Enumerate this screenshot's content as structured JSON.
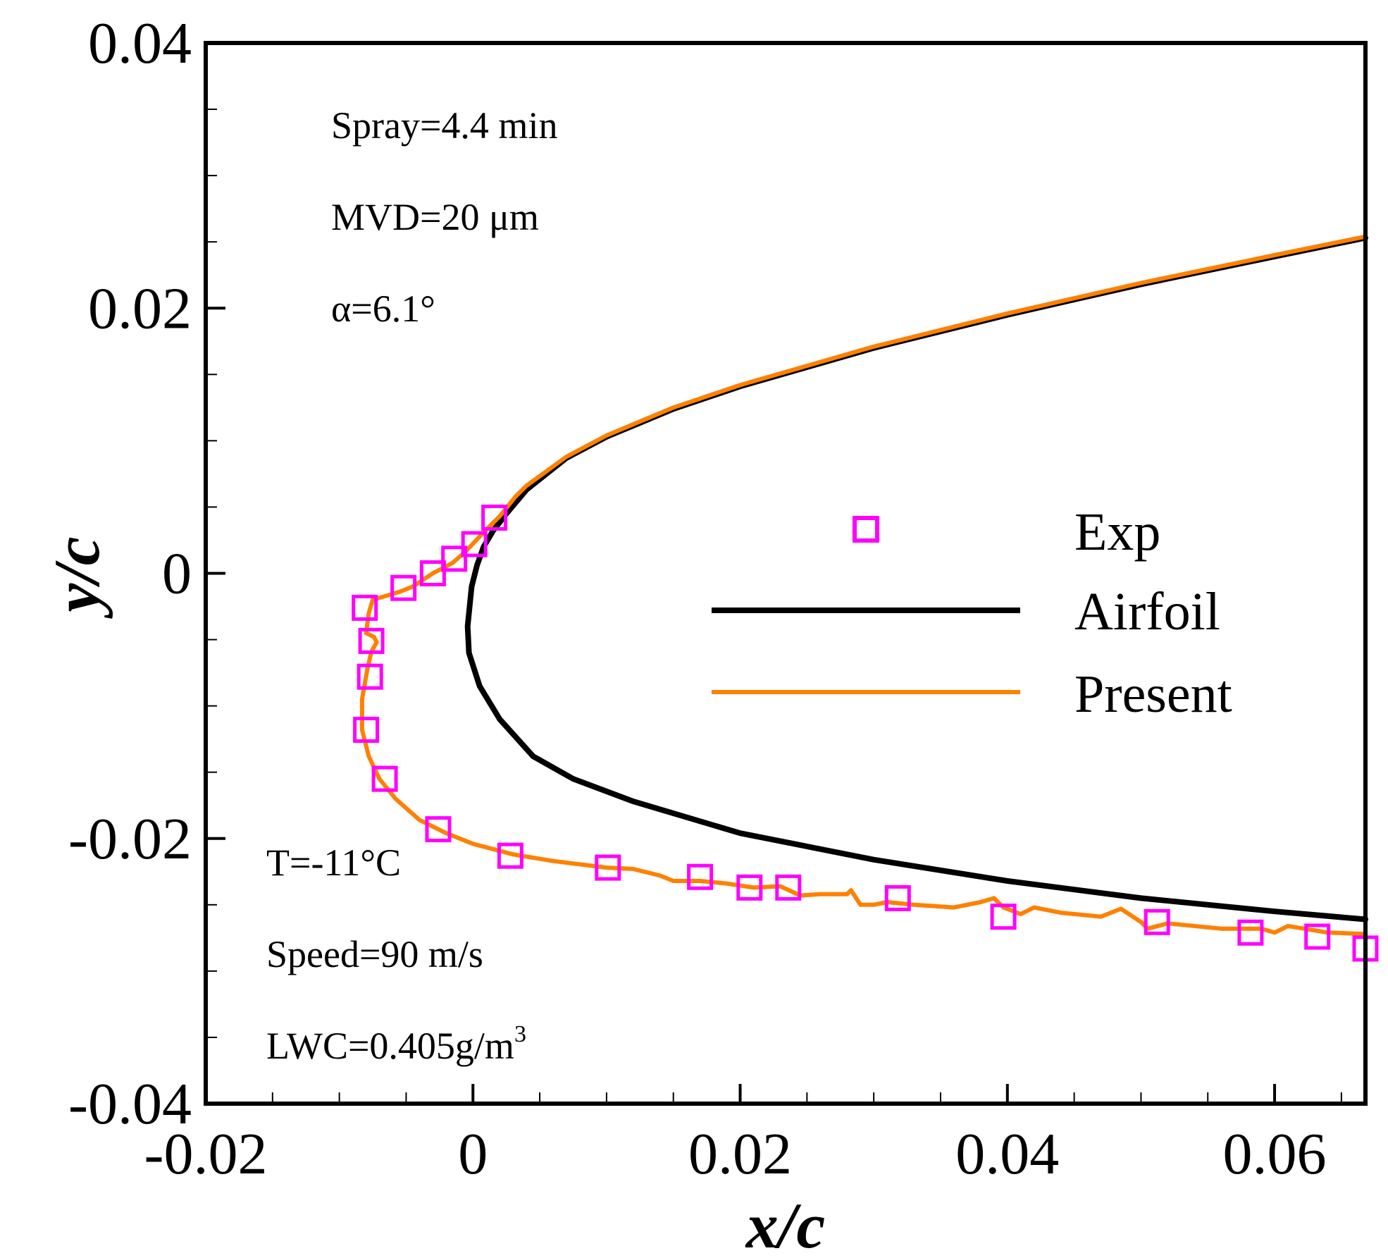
{
  "chart_data": {
    "type": "scatter",
    "xlabel": "x/c",
    "ylabel": "y/c",
    "xlim": [
      -0.02,
      0.0668
    ],
    "ylim": [
      -0.04,
      0.04
    ],
    "x_major_ticks": [
      -0.02,
      0,
      0.02,
      0.04,
      0.06
    ],
    "x_tick_labels": [
      "-0.02",
      "0",
      "0.02",
      "0.04",
      "0.06"
    ],
    "x_minor_ticks": [
      -0.015,
      -0.01,
      -0.005,
      0.005,
      0.01,
      0.015,
      0.025,
      0.03,
      0.035,
      0.045,
      0.05,
      0.055,
      0.065
    ],
    "y_major_ticks": [
      -0.04,
      -0.02,
      0,
      0.02,
      0.04
    ],
    "y_tick_labels": [
      "-0.04",
      "-0.02",
      "0",
      "0.02",
      "0.04"
    ],
    "y_minor_ticks": [
      -0.035,
      -0.03,
      -0.025,
      -0.015,
      -0.01,
      -0.005,
      0.005,
      0.01,
      0.015,
      0.025,
      0.03,
      0.035
    ],
    "grid": false,
    "legend_position": "center-right",
    "annotations_top": [
      "Spray=4.4 min",
      "MVD=20 μm",
      "α=6.1°"
    ],
    "annotations_bottom": {
      "temperature": "T=-11°C",
      "speed": "Speed=90 m/s",
      "lwc": "LWC=0.405g/m",
      "lwc_superscript": "3"
    },
    "series": [
      {
        "name": "Exp",
        "kind": "markers",
        "marker": "open-square",
        "color": "#ff00ff",
        "points": [
          [
            0.0016,
            0.0042
          ],
          [
            0.0001,
            0.0022
          ],
          [
            -0.0014,
            0.0011
          ],
          [
            -0.003,
            0.0
          ],
          [
            -0.0052,
            -0.0011
          ],
          [
            -0.0081,
            -0.0026
          ],
          [
            -0.0076,
            -0.0051
          ],
          [
            -0.0077,
            -0.0078
          ],
          [
            -0.008,
            -0.0118
          ],
          [
            -0.0066,
            -0.0155
          ],
          [
            -0.0026,
            -0.0193
          ],
          [
            0.0028,
            -0.0213
          ],
          [
            0.0101,
            -0.0222
          ],
          [
            0.017,
            -0.0229
          ],
          [
            0.0207,
            -0.0237
          ],
          [
            0.0236,
            -0.0237
          ],
          [
            0.0318,
            -0.0245
          ],
          [
            0.0397,
            -0.0259
          ],
          [
            0.0512,
            -0.0263
          ],
          [
            0.0582,
            -0.0271
          ],
          [
            0.0632,
            -0.0274
          ],
          [
            0.0668,
            -0.0283
          ]
        ]
      },
      {
        "name": "Airfoil",
        "kind": "line",
        "color": "#000000",
        "points": [
          [
            0.0668,
            0.0253
          ],
          [
            0.06,
            0.0239
          ],
          [
            0.05,
            0.0218
          ],
          [
            0.04,
            0.0195
          ],
          [
            0.03,
            0.017
          ],
          [
            0.02,
            0.0141
          ],
          [
            0.015,
            0.0124
          ],
          [
            0.01,
            0.0103
          ],
          [
            0.007,
            0.0087
          ],
          [
            0.004,
            0.0063
          ],
          [
            0.0025,
            0.0045
          ],
          [
            0.0015,
            0.0032
          ],
          [
            0.0008,
            0.002
          ],
          [
            0.0003,
            0.0006
          ],
          [
            -0.0001,
            -0.001
          ],
          [
            -0.0004,
            -0.004
          ],
          [
            -0.0003,
            -0.006
          ],
          [
            0.0005,
            -0.0085
          ],
          [
            0.002,
            -0.011
          ],
          [
            0.0045,
            -0.0138
          ],
          [
            0.0075,
            -0.0155
          ],
          [
            0.012,
            -0.0172
          ],
          [
            0.02,
            -0.0196
          ],
          [
            0.03,
            -0.0216
          ],
          [
            0.04,
            -0.0232
          ],
          [
            0.05,
            -0.0245
          ],
          [
            0.06,
            -0.0255
          ],
          [
            0.0668,
            -0.0261
          ]
        ]
      },
      {
        "name": "Present",
        "kind": "line",
        "color": "#ff8000",
        "points": [
          [
            0.0668,
            0.0254
          ],
          [
            0.06,
            0.024
          ],
          [
            0.05,
            0.0219
          ],
          [
            0.04,
            0.0196
          ],
          [
            0.03,
            0.0171
          ],
          [
            0.02,
            0.0142
          ],
          [
            0.015,
            0.0125
          ],
          [
            0.01,
            0.0104
          ],
          [
            0.007,
            0.0088
          ],
          [
            0.004,
            0.0066
          ],
          [
            0.0032,
            0.0058
          ],
          [
            0.002,
            0.0043
          ],
          [
            0.001,
            0.0033
          ],
          [
            -0.0005,
            0.0017
          ],
          [
            -0.0015,
            0.0008
          ],
          [
            -0.003,
            0.0
          ],
          [
            -0.0045,
            -0.001
          ],
          [
            -0.0055,
            -0.0014
          ],
          [
            -0.0075,
            -0.002
          ],
          [
            -0.0078,
            -0.003
          ],
          [
            -0.008,
            -0.0045
          ],
          [
            -0.0074,
            -0.0048
          ],
          [
            -0.0072,
            -0.0052
          ],
          [
            -0.0076,
            -0.0059
          ],
          [
            -0.0079,
            -0.0072
          ],
          [
            -0.0083,
            -0.0095
          ],
          [
            -0.0083,
            -0.0118
          ],
          [
            -0.0078,
            -0.0138
          ],
          [
            -0.007,
            -0.0155
          ],
          [
            -0.0058,
            -0.017
          ],
          [
            -0.004,
            -0.0186
          ],
          [
            -0.002,
            -0.0196
          ],
          [
            0.0,
            -0.0204
          ],
          [
            0.003,
            -0.0212
          ],
          [
            0.006,
            -0.0217
          ],
          [
            0.01,
            -0.0222
          ],
          [
            0.012,
            -0.0223
          ],
          [
            0.014,
            -0.0228
          ],
          [
            0.015,
            -0.0232
          ],
          [
            0.017,
            -0.0232
          ],
          [
            0.019,
            -0.0234
          ],
          [
            0.021,
            -0.0237
          ],
          [
            0.023,
            -0.0236
          ],
          [
            0.0245,
            -0.0243
          ],
          [
            0.026,
            -0.0242
          ],
          [
            0.028,
            -0.0242
          ],
          [
            0.0283,
            -0.0239
          ],
          [
            0.029,
            -0.025
          ],
          [
            0.03,
            -0.025
          ],
          [
            0.031,
            -0.0248
          ],
          [
            0.033,
            -0.025
          ],
          [
            0.036,
            -0.0252
          ],
          [
            0.038,
            -0.0248
          ],
          [
            0.039,
            -0.0245
          ],
          [
            0.0397,
            -0.0252
          ],
          [
            0.041,
            -0.0257
          ],
          [
            0.042,
            -0.0252
          ],
          [
            0.044,
            -0.0256
          ],
          [
            0.047,
            -0.0259
          ],
          [
            0.0485,
            -0.0253
          ],
          [
            0.05,
            -0.0263
          ],
          [
            0.0505,
            -0.0268
          ],
          [
            0.052,
            -0.0264
          ],
          [
            0.056,
            -0.0268
          ],
          [
            0.059,
            -0.0268
          ],
          [
            0.06,
            -0.0271
          ],
          [
            0.061,
            -0.0266
          ],
          [
            0.064,
            -0.0271
          ],
          [
            0.0668,
            -0.0272
          ]
        ]
      }
    ]
  }
}
